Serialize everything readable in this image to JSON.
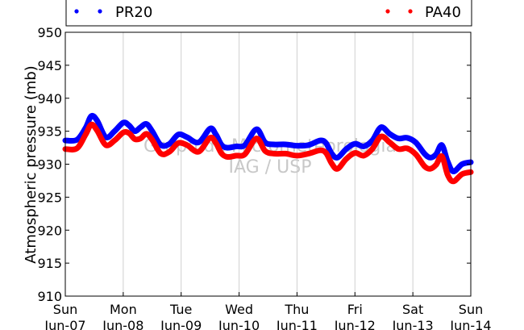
{
  "chart_data": {
    "type": "line",
    "ylabel": "Atmospheric pressure (mb)",
    "ylim": [
      910,
      950
    ],
    "yticks": [
      910,
      915,
      920,
      925,
      930,
      935,
      940,
      945,
      950
    ],
    "xlim": [
      0,
      7
    ],
    "xticks": [
      {
        "day": "Sun",
        "date": "Jun-07"
      },
      {
        "day": "Mon",
        "date": "Jun-08"
      },
      {
        "day": "Tue",
        "date": "Jun-09"
      },
      {
        "day": "Wed",
        "date": "Jun-10"
      },
      {
        "day": "Thu",
        "date": "Jun-11"
      },
      {
        "day": "Fri",
        "date": "Jun-12"
      },
      {
        "day": "Sat",
        "date": "Jun-13"
      },
      {
        "day": "Sun",
        "date": "Jun-14"
      }
    ],
    "grid": "vertical",
    "legend_placement": "top",
    "watermark": [
      "Grupo de Micrometeorologia",
      "IAG / USP"
    ],
    "series": [
      {
        "name": "PR20",
        "color": "#0000ff",
        "x": [
          0.0,
          0.2,
          0.35,
          0.45,
          0.55,
          0.7,
          0.85,
          1.0,
          1.1,
          1.2,
          1.3,
          1.4,
          1.5,
          1.65,
          1.8,
          1.95,
          2.1,
          2.3,
          2.5,
          2.6,
          2.7,
          2.8,
          2.95,
          3.1,
          3.3,
          3.45,
          3.6,
          3.8,
          4.0,
          4.2,
          4.4,
          4.5,
          4.6,
          4.7,
          4.85,
          5.0,
          5.15,
          5.3,
          5.45,
          5.6,
          5.75,
          5.9,
          6.05,
          6.2,
          6.3,
          6.4,
          6.5,
          6.6,
          6.7,
          6.85,
          7.0
        ],
        "values": [
          933.6,
          933.7,
          935.5,
          937.3,
          936.6,
          934.1,
          935.0,
          936.3,
          935.9,
          935.0,
          935.6,
          936.1,
          935.0,
          932.9,
          933.1,
          934.5,
          934.1,
          933.3,
          935.4,
          934.5,
          932.9,
          932.5,
          932.7,
          932.9,
          935.3,
          933.3,
          933.0,
          933.0,
          932.8,
          932.9,
          933.6,
          933.2,
          931.6,
          931.0,
          932.3,
          933.1,
          932.7,
          933.6,
          935.6,
          934.6,
          933.9,
          934.0,
          933.3,
          931.6,
          931.0,
          931.5,
          932.9,
          930.4,
          928.9,
          930.0,
          930.3
        ]
      },
      {
        "name": "PA40",
        "color": "#ff0000",
        "x": [
          0.0,
          0.2,
          0.35,
          0.45,
          0.55,
          0.7,
          0.85,
          1.0,
          1.1,
          1.2,
          1.3,
          1.4,
          1.5,
          1.65,
          1.8,
          1.95,
          2.1,
          2.3,
          2.5,
          2.6,
          2.7,
          2.8,
          2.95,
          3.1,
          3.3,
          3.45,
          3.6,
          3.8,
          4.0,
          4.2,
          4.4,
          4.5,
          4.6,
          4.7,
          4.85,
          5.0,
          5.15,
          5.3,
          5.45,
          5.6,
          5.75,
          5.9,
          6.05,
          6.2,
          6.3,
          6.4,
          6.5,
          6.6,
          6.7,
          6.85,
          7.0
        ],
        "values": [
          932.3,
          932.4,
          934.5,
          936.0,
          935.1,
          932.9,
          933.6,
          934.8,
          934.7,
          933.8,
          933.9,
          934.6,
          933.7,
          931.6,
          931.9,
          933.2,
          932.9,
          931.9,
          934.0,
          933.2,
          931.6,
          931.1,
          931.3,
          931.5,
          933.9,
          932.0,
          931.6,
          931.6,
          931.3,
          931.6,
          932.1,
          931.7,
          930.1,
          929.3,
          930.8,
          931.7,
          931.3,
          932.3,
          934.2,
          933.3,
          932.3,
          932.4,
          931.5,
          929.7,
          929.3,
          929.9,
          931.2,
          928.4,
          927.4,
          928.5,
          928.8
        ]
      }
    ]
  }
}
